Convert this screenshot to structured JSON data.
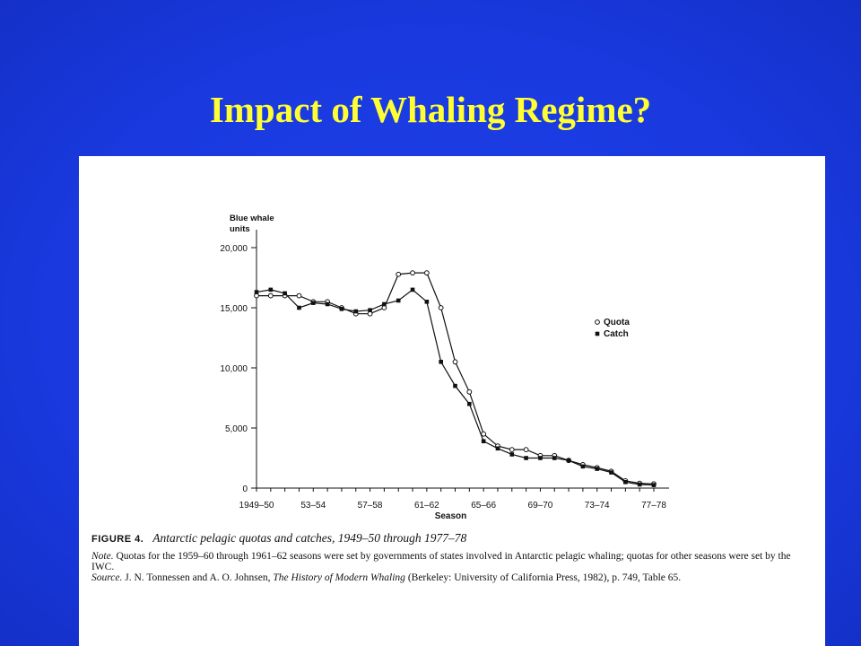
{
  "slide": {
    "title": "Impact of Whaling Regime?"
  },
  "caption": {
    "figure_label": "FIGURE 4.",
    "figure_text": "Antarctic pelagic quotas and catches, 1949–50 through 1977–78",
    "note_label": "Note.",
    "note_text": "Quotas for the 1959–60 through 1961–62 seasons were set by governments of states involved in Antarctic pelagic whaling; quotas for other seasons were set by the IWC.",
    "source_label": "Source.",
    "source_authors": "J. N. Tonnessen and A. O. Johnsen,",
    "source_book": "The History of Modern Whaling",
    "source_rest": "(Berkeley: University of California Press, 1982), p. 749, Table 65."
  },
  "colors": {
    "background": "#1a3ae0",
    "title": "#ffff33",
    "panel": "#ffffff",
    "ink": "#111111"
  },
  "chart_data": {
    "type": "line",
    "title": "",
    "ylabel": "Blue whale units",
    "xlabel": "Season",
    "ylim": [
      0,
      20000
    ],
    "yticks": [
      0,
      5000,
      10000,
      15000,
      20000
    ],
    "ytick_labels": [
      "0",
      "5,000",
      "10,000",
      "15,000",
      "20,000"
    ],
    "categories": [
      "1949–50",
      "1950–51",
      "1951–52",
      "1952–53",
      "1953–54",
      "1954–55",
      "1955–56",
      "1956–57",
      "1957–58",
      "1958–59",
      "1959–60",
      "1960–61",
      "1961–62",
      "1962–63",
      "1963–64",
      "1964–65",
      "1965–66",
      "1966–67",
      "1967–68",
      "1968–69",
      "1969–70",
      "1970–71",
      "1971–72",
      "1972–73",
      "1973–74",
      "1974–75",
      "1975–76",
      "1976–77",
      "1977–78"
    ],
    "xtick_labels": [
      "1949–50",
      "53–54",
      "57–58",
      "61–62",
      "65–66",
      "69–70",
      "73–74",
      "77–78"
    ],
    "xtick_positions": [
      0,
      4,
      8,
      12,
      16,
      20,
      24,
      28
    ],
    "legend": "right",
    "series": [
      {
        "name": "Quota",
        "marker": "open-circle",
        "values": [
          16000,
          16000,
          16000,
          16000,
          15500,
          15500,
          15000,
          14500,
          14500,
          15000,
          17780,
          17900,
          17900,
          15000,
          10500,
          8000,
          4500,
          3500,
          3200,
          3200,
          2700,
          2700,
          2300,
          1950,
          1700,
          1400,
          600,
          400,
          350
        ]
      },
      {
        "name": "Catch",
        "marker": "filled-square",
        "values": [
          16300,
          16500,
          16200,
          15000,
          15400,
          15300,
          14900,
          14700,
          14800,
          15300,
          15600,
          16500,
          15500,
          10500,
          8500,
          7000,
          3900,
          3300,
          2800,
          2500,
          2500,
          2500,
          2300,
          1800,
          1600,
          1300,
          500,
          300,
          250
        ]
      }
    ]
  }
}
